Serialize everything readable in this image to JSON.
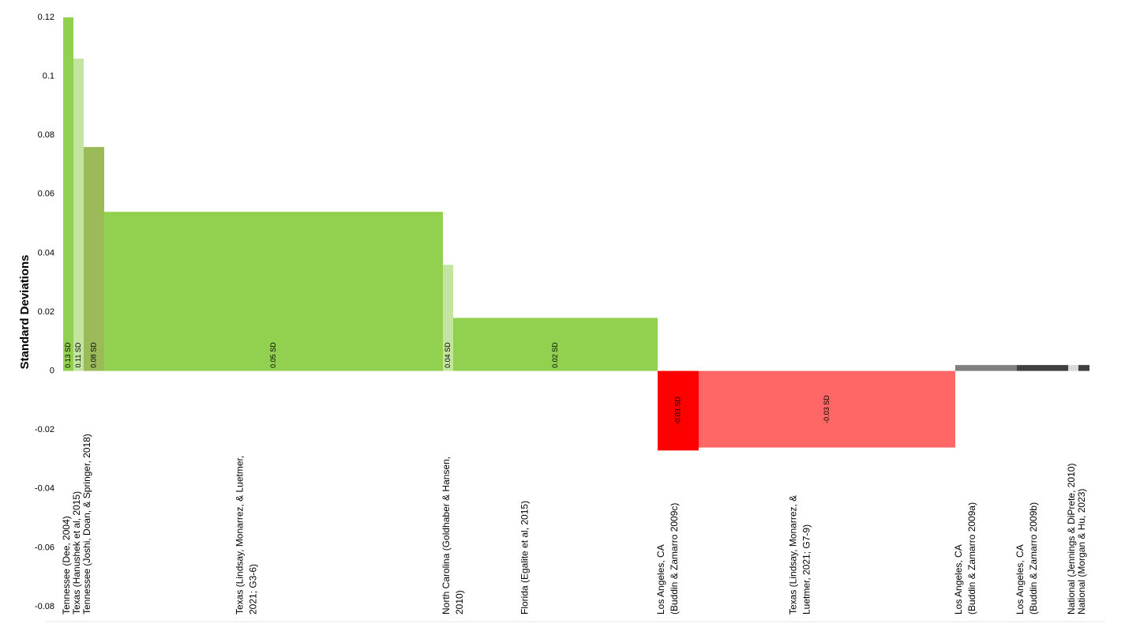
{
  "chart_data": {
    "type": "bar",
    "ylabel": "Standard Deviations",
    "categories": [
      "Tennessee (Dee, 2004)",
      "Texas (Hanushek et al, 2015)",
      "Tennessee (Joshi, Doan, & Springer, 2018)",
      "Texas (Lindsay, Monarrez, & Luetmer,\n2021; G3-6)",
      "North Carolina  (Goldhaber & Hansen,\n2010)",
      "Florida  (Egalite et al, 2015)",
      "Los Angeles, CA\n(Buddin & Zamarro 2009c)",
      "Texas (Lindsay, Monarrez, &\nLuetmer, 2021; G7-9)",
      "Los Angeles, CA\n(Buddin & Zamarro 2009a)",
      "Los Angeles, CA\n(Buddin & Zamarro 2009b)",
      "National  (Jennings & DiPrete, 2010)",
      "National  (Morgan & Hu, 2023)"
    ],
    "values": [
      0.13,
      0.106,
      0.076,
      0.054,
      0.036,
      0.018,
      -0.027,
      -0.026,
      0.002,
      0.002,
      0.002,
      0.002
    ],
    "value_labels": [
      "0.13 SD",
      "0.11 SD",
      "0.08 SD",
      "0.05 SD",
      "0.04 SD",
      "0.02 SD",
      "-0.03 SD",
      "-0.03 SD",
      null,
      null,
      null,
      null
    ],
    "widths": [
      13,
      13,
      26,
      429,
      13,
      259,
      52,
      325,
      78,
      65,
      13,
      14
    ],
    "colors": [
      "#92d050",
      "#c4e59f",
      "#9bbb59",
      "#92d050",
      "#c4e59f",
      "#92d050",
      "#ff0000",
      "#ff6666",
      "#808080",
      "#404040",
      "#d9d9d9",
      "#404040"
    ],
    "ylim": [
      -0.08,
      0.12
    ],
    "yticks": [
      -0.08,
      -0.06,
      -0.04,
      -0.02,
      0,
      0.02,
      0.04,
      0.06,
      0.08,
      0.1,
      0.12
    ]
  }
}
